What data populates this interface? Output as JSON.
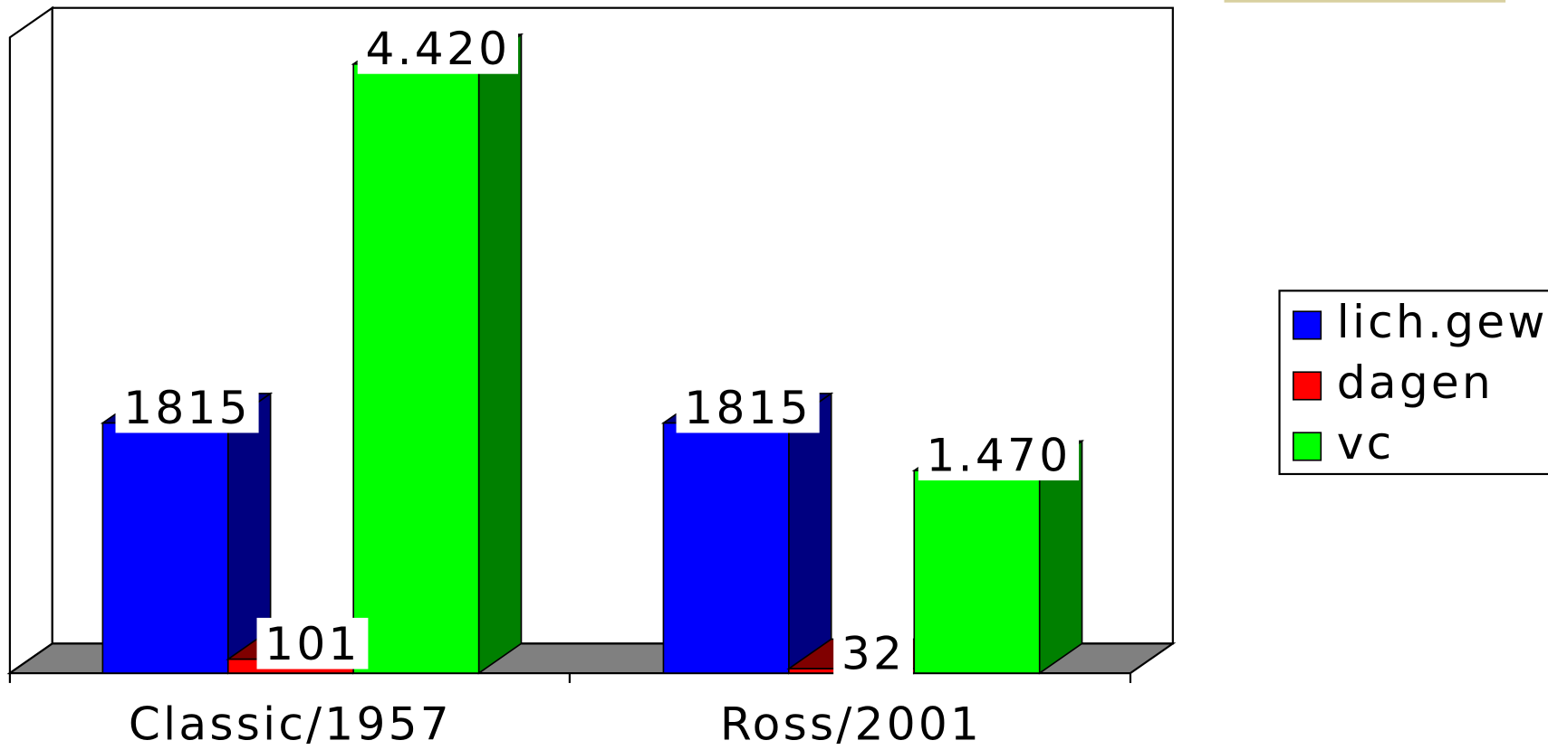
{
  "chart_data": {
    "type": "bar3d",
    "categories": [
      "Classic/1957",
      "Ross/2001"
    ],
    "series": [
      {
        "name": "lich.gew",
        "color": "#0000ff",
        "values": [
          1815,
          1815
        ]
      },
      {
        "name": "dagen",
        "color": "#ff0000",
        "values": [
          101,
          32
        ]
      },
      {
        "name": "vc",
        "color": "#00ff00",
        "values": [
          4420,
          1470
        ],
        "value_labels": [
          "4.420",
          "1.470"
        ]
      }
    ]
  }
}
